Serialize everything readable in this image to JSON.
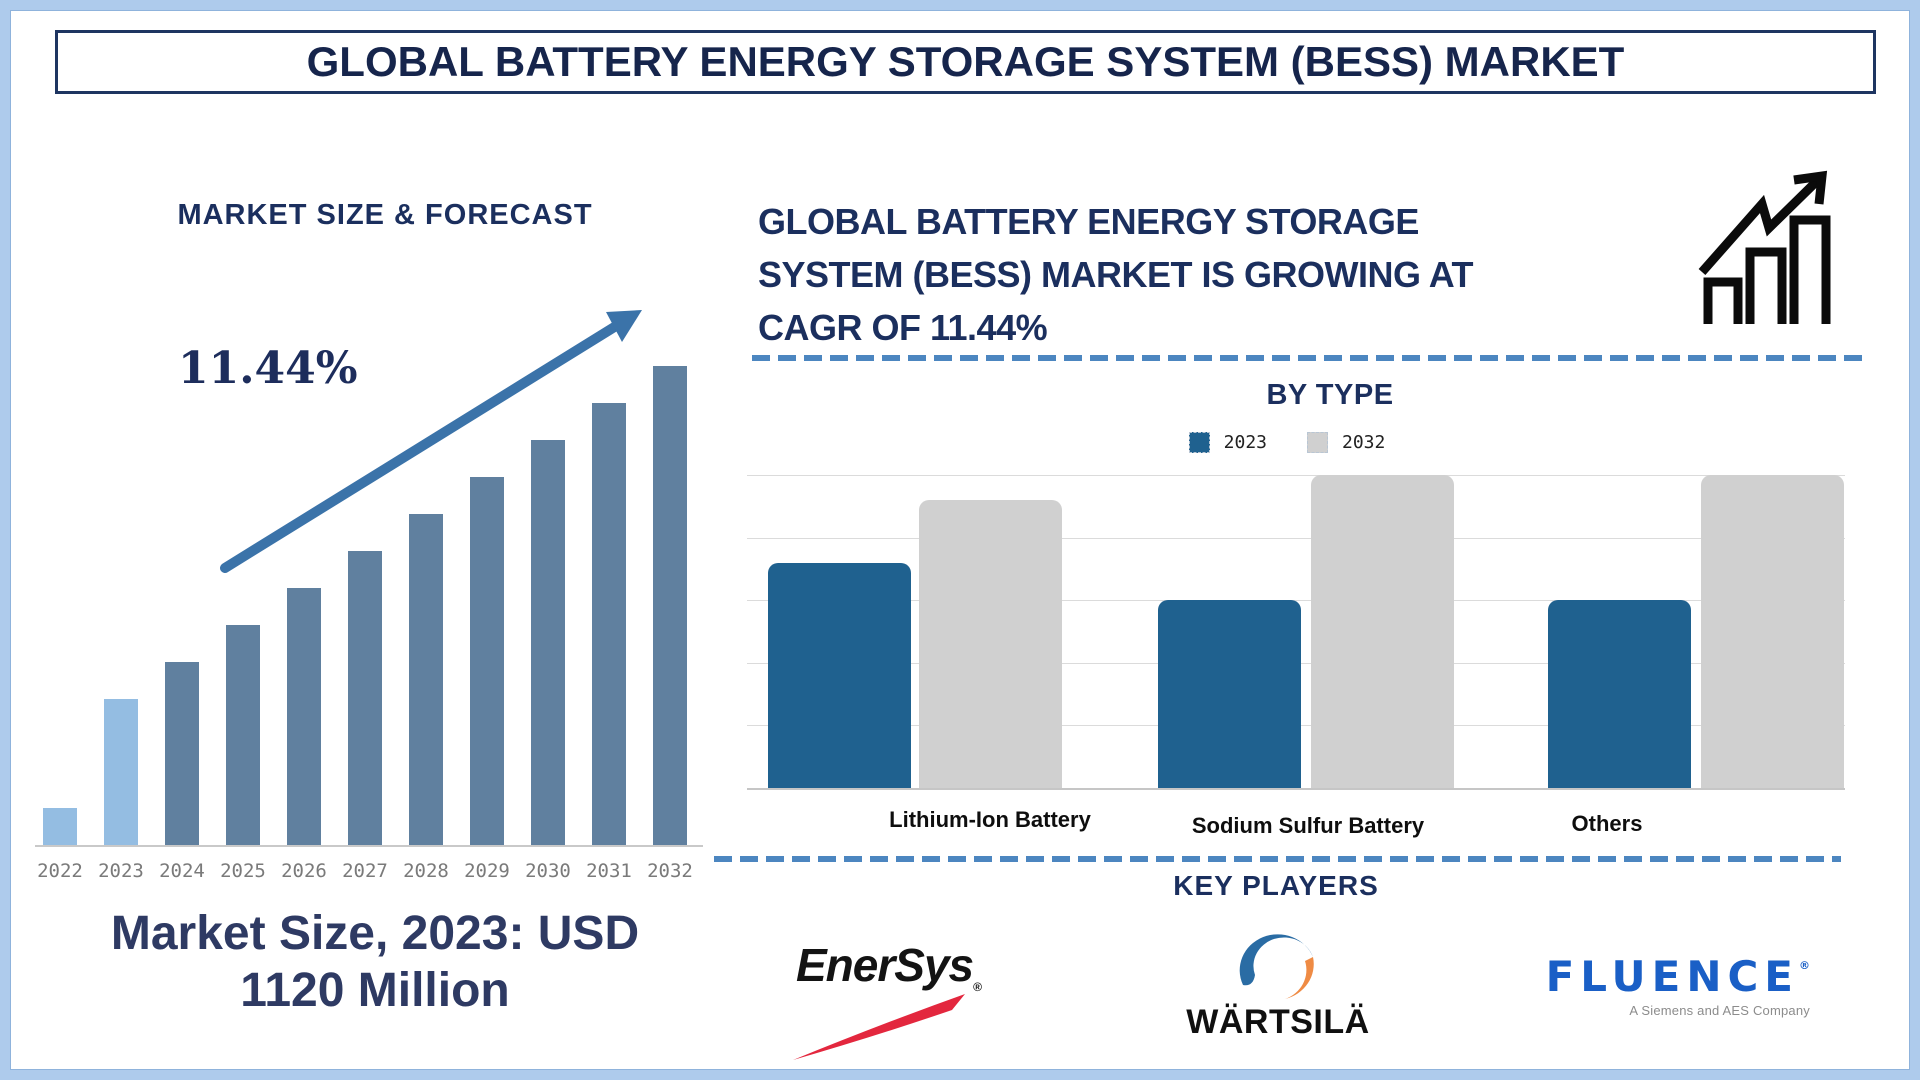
{
  "window": {
    "title": "GLOBAL BATTERY ENERGY STORAGE SYSTEM (BESS) MARKET"
  },
  "left_panel": {
    "cagr_callout": "11.44%",
    "market_size_note_line1": "Market Size, 2023: USD",
    "market_size_note_line2": "1120 Million"
  },
  "right_panel": {
    "headline_lines": [
      "GLOBAL BATTERY ENERGY STORAGE",
      "SYSTEM (BESS) MARKET IS GROWING AT",
      "CAGR OF 11.44%"
    ],
    "growth_icon": "growth-chart-icon",
    "key_players": {
      "title": "KEY PLAYERS",
      "enersys": {
        "name": "EnerSys",
        "reg": "®"
      },
      "wartsila": {
        "name": "WÄRTSILÄ"
      },
      "fluence": {
        "name": "FLUENCE",
        "reg": "®",
        "tagline": "A Siemens and AES Company"
      }
    }
  },
  "colors": {
    "navy_text": "#1b2f5e",
    "arrow_blue": "#3b73a9",
    "dashed_divider": "#4c86c0",
    "page_border": "#aecbec",
    "year_label_gray": "#7a7a7a"
  },
  "chart_data": [
    {
      "id": "market_size_forecast",
      "type": "bar",
      "title": "MARKET SIZE & FORECAST",
      "categories": [
        "2022",
        "2023",
        "2024",
        "2025",
        "2026",
        "2027",
        "2028",
        "2029",
        "2030",
        "2031",
        "2032"
      ],
      "values_relative": [
        37,
        146,
        183,
        220,
        257,
        294,
        331,
        368,
        405,
        442,
        479
      ],
      "value_scale": "relative bar heights in px; no numeric y-axis shown",
      "known_points": {
        "2023": "USD 1120 Million",
        "cagr_2023_2032": "11.44%"
      },
      "highlight_years": [
        "2022",
        "2023"
      ],
      "colors": {
        "highlight": "#94bde2",
        "default": "#60809f"
      },
      "grid": false,
      "legend": false,
      "xlabel": "",
      "ylabel": ""
    },
    {
      "id": "by_type",
      "type": "bar",
      "title": "BY TYPE",
      "categories": [
        "Lithium-Ion Battery",
        "Sodium Sulfur Battery",
        "Others"
      ],
      "series": [
        {
          "name": "2023",
          "color": "#1f618f",
          "values": [
            3.6,
            3.0,
            3.0
          ]
        },
        {
          "name": "2032",
          "color": "#d0d0d0",
          "values": [
            4.6,
            5.0,
            5.0
          ]
        }
      ],
      "ylim": [
        0,
        5
      ],
      "value_scale": "gridline units; no numeric y-axis shown",
      "grid": true,
      "legend_position": "top",
      "xlabel": "",
      "ylabel": ""
    }
  ]
}
